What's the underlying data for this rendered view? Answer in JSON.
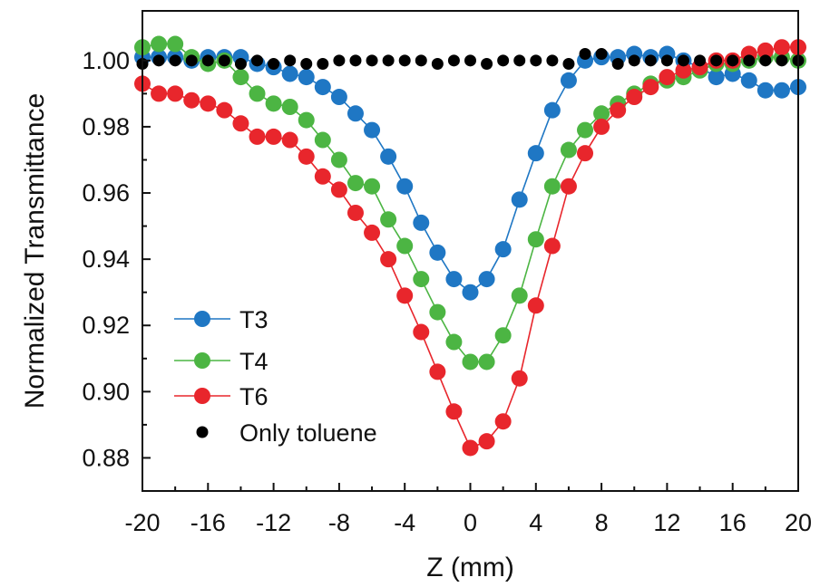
{
  "chart_data": {
    "type": "line",
    "title": "",
    "xlabel": "Z (mm)",
    "ylabel": "Normalized Transmittance",
    "xlim": [
      -20,
      20
    ],
    "ylim": [
      0.87,
      1.015
    ],
    "xticks": [
      -20,
      -16,
      -12,
      -8,
      -4,
      0,
      4,
      8,
      12,
      16,
      20
    ],
    "xtick_labels": [
      "-20",
      "-16",
      "-12",
      "-8",
      "-4",
      "0",
      "4",
      "8",
      "12",
      "16",
      "20"
    ],
    "yticks": [
      0.88,
      0.9,
      0.92,
      0.94,
      0.96,
      0.98,
      1.0
    ],
    "ytick_labels": [
      "0.88",
      "0.90",
      "0.92",
      "0.94",
      "0.96",
      "0.98",
      "1.00"
    ],
    "grid": false,
    "legend_position": "lower-left",
    "x": [
      -20,
      -19,
      -18,
      -17,
      -16,
      -15,
      -14,
      -13,
      -12,
      -11,
      -10,
      -9,
      -8,
      -7,
      -6,
      -5,
      -4,
      -3,
      -2,
      -1,
      0,
      1,
      2,
      3,
      4,
      5,
      6,
      7,
      8,
      9,
      10,
      11,
      12,
      13,
      14,
      15,
      16,
      17,
      18,
      19,
      20
    ],
    "series": [
      {
        "name": "T3",
        "color": "#1f77c4",
        "connected": true,
        "values": [
          1.001,
          1.001,
          1.001,
          1.0,
          1.001,
          1.001,
          1.001,
          0.999,
          0.998,
          0.996,
          0.995,
          0.992,
          0.989,
          0.984,
          0.979,
          0.971,
          0.962,
          0.951,
          0.942,
          0.934,
          0.93,
          0.934,
          0.943,
          0.958,
          0.972,
          0.985,
          0.994,
          1.0,
          1.001,
          1.001,
          1.002,
          1.001,
          1.002,
          1.0,
          0.998,
          0.995,
          0.996,
          0.994,
          0.991,
          0.991,
          0.992
        ]
      },
      {
        "name": "T4",
        "color": "#4cb543",
        "connected": true,
        "values": [
          1.004,
          1.005,
          1.005,
          1.001,
          0.999,
          1.0,
          0.995,
          0.99,
          0.987,
          0.986,
          0.982,
          0.976,
          0.97,
          0.963,
          0.962,
          0.952,
          0.944,
          0.934,
          0.924,
          0.915,
          0.909,
          0.909,
          0.917,
          0.929,
          0.946,
          0.962,
          0.973,
          0.979,
          0.984,
          0.987,
          0.99,
          0.993,
          0.994,
          0.995,
          0.997,
          0.999,
          0.999,
          1.0,
          1.001,
          1.001,
          1.0
        ]
      },
      {
        "name": "T6",
        "color": "#e8262c",
        "connected": true,
        "values": [
          0.993,
          0.99,
          0.99,
          0.988,
          0.987,
          0.985,
          0.981,
          0.977,
          0.977,
          0.976,
          0.971,
          0.965,
          0.961,
          0.954,
          0.948,
          0.94,
          0.929,
          0.918,
          0.906,
          0.894,
          0.883,
          0.885,
          0.891,
          0.904,
          0.926,
          0.944,
          0.962,
          0.972,
          0.98,
          0.985,
          0.989,
          0.992,
          0.995,
          0.997,
          0.998,
          1.0,
          1.0,
          1.002,
          1.003,
          1.004,
          1.004
        ]
      },
      {
        "name": "Only toluene",
        "color": "#000000",
        "connected": false,
        "values": [
          0.999,
          1.0,
          1.0,
          1.0,
          1.0,
          1.0,
          0.999,
          1.0,
          0.999,
          1.0,
          0.999,
          0.999,
          1.0,
          1.0,
          1.0,
          1.0,
          1.0,
          1.0,
          0.999,
          1.0,
          1.0,
          0.999,
          1.0,
          1.0,
          1.0,
          1.0,
          0.999,
          1.002,
          1.002,
          0.999,
          1.0,
          1.0,
          1.0,
          1.0,
          1.0,
          1.0,
          1.0,
          1.0,
          1.0,
          1.0,
          1.0
        ]
      }
    ]
  }
}
